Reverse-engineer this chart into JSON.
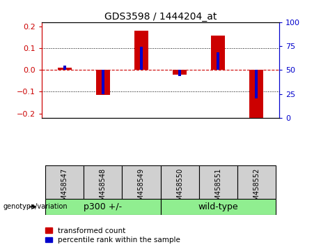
{
  "title": "GDS3598 / 1444204_at",
  "samples": [
    "GSM458547",
    "GSM458548",
    "GSM458549",
    "GSM458550",
    "GSM458551",
    "GSM458552"
  ],
  "red_values": [
    0.01,
    -0.115,
    0.18,
    -0.02,
    0.16,
    -0.22
  ],
  "blue_percentiles": [
    55,
    22,
    77,
    43,
    70,
    17
  ],
  "group_label": "genotype/variation",
  "group_defs": [
    {
      "label": "p300 +/-",
      "start": 0,
      "end": 2,
      "color": "#90EE90"
    },
    {
      "label": "wild-type",
      "start": 3,
      "end": 5,
      "color": "#90EE90"
    }
  ],
  "ylim_left": [
    -0.22,
    0.22
  ],
  "yticks_left": [
    -0.2,
    -0.1,
    0.0,
    0.1,
    0.2
  ],
  "ylim_right": [
    0,
    100
  ],
  "yticks_right": [
    0,
    25,
    50,
    75,
    100
  ],
  "red_color": "#CC0000",
  "blue_color": "#0000CC",
  "bar_width": 0.35,
  "blue_bar_width": 0.08,
  "legend_red": "transformed count",
  "legend_blue": "percentile rank within the sample",
  "sample_box_color": "#d0d0d0",
  "title_fontsize": 10,
  "tick_fontsize": 8,
  "sample_fontsize": 7,
  "group_fontsize": 9,
  "legend_fontsize": 7.5
}
